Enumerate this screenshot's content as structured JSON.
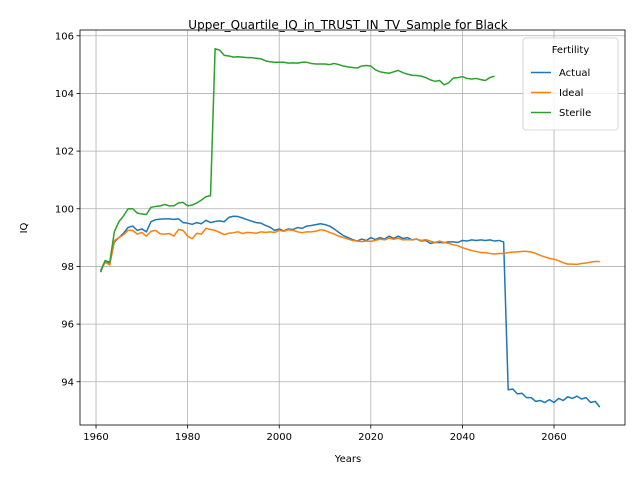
{
  "chart_data": {
    "type": "line",
    "title": "Upper_Quartile_IQ_in_TRUST_IN_TV_Sample for Black",
    "xlabel": "Years",
    "ylabel": "IQ",
    "xlim": [
      1956.5,
      2075.5
    ],
    "ylim": [
      92.5,
      106.2
    ],
    "xticks": [
      1960,
      1980,
      2000,
      2020,
      2040,
      2060
    ],
    "yticks": [
      94,
      96,
      98,
      100,
      102,
      104,
      106
    ],
    "grid": true,
    "legend": {
      "title": "Fertility",
      "position": "top-right"
    },
    "series": [
      {
        "name": "Actual",
        "color": "#1f77b4",
        "points": [
          [
            1961,
            97.8
          ],
          [
            1962,
            98.2
          ],
          [
            1963,
            98.1
          ],
          [
            1964,
            98.85
          ],
          [
            1965,
            99.0
          ],
          [
            1966,
            99.15
          ],
          [
            1967,
            99.35
          ],
          [
            1968,
            99.4
          ],
          [
            1969,
            99.25
          ],
          [
            1970,
            99.3
          ],
          [
            1971,
            99.2
          ],
          [
            1972,
            99.55
          ],
          [
            1973,
            99.62
          ],
          [
            1974,
            99.64
          ],
          [
            1975,
            99.65
          ],
          [
            1976,
            99.65
          ],
          [
            1977,
            99.63
          ],
          [
            1978,
            99.65
          ],
          [
            1979,
            99.52
          ],
          [
            1980,
            99.5
          ],
          [
            1981,
            99.46
          ],
          [
            1982,
            99.52
          ],
          [
            1983,
            99.48
          ],
          [
            1984,
            99.6
          ],
          [
            1985,
            99.52
          ],
          [
            1986,
            99.56
          ],
          [
            1987,
            99.58
          ],
          [
            1988,
            99.55
          ],
          [
            1989,
            99.7
          ],
          [
            1990,
            99.74
          ],
          [
            1991,
            99.73
          ],
          [
            1992,
            99.68
          ],
          [
            1993,
            99.62
          ],
          [
            1994,
            99.57
          ],
          [
            1995,
            99.52
          ],
          [
            1996,
            99.5
          ],
          [
            1997,
            99.42
          ],
          [
            1998,
            99.36
          ],
          [
            1999,
            99.25
          ],
          [
            2000,
            99.3
          ],
          [
            2001,
            99.23
          ],
          [
            2002,
            99.3
          ],
          [
            2003,
            99.28
          ],
          [
            2004,
            99.35
          ],
          [
            2005,
            99.32
          ],
          [
            2006,
            99.4
          ],
          [
            2007,
            99.42
          ],
          [
            2008,
            99.45
          ],
          [
            2009,
            99.48
          ],
          [
            2010,
            99.45
          ],
          [
            2011,
            99.4
          ],
          [
            2012,
            99.3
          ],
          [
            2013,
            99.18
          ],
          [
            2014,
            99.07
          ],
          [
            2015,
            99.0
          ],
          [
            2016,
            98.93
          ],
          [
            2017,
            98.88
          ],
          [
            2018,
            98.95
          ],
          [
            2019,
            98.9
          ],
          [
            2020,
            99.0
          ],
          [
            2021,
            98.93
          ],
          [
            2022,
            99.0
          ],
          [
            2023,
            98.95
          ],
          [
            2024,
            99.05
          ],
          [
            2025,
            98.97
          ],
          [
            2026,
            99.05
          ],
          [
            2027,
            98.97
          ],
          [
            2028,
            99.0
          ],
          [
            2029,
            98.92
          ],
          [
            2030,
            98.95
          ],
          [
            2031,
            98.88
          ],
          [
            2032,
            98.9
          ],
          [
            2033,
            98.8
          ],
          [
            2034,
            98.83
          ],
          [
            2035,
            98.83
          ],
          [
            2036,
            98.82
          ],
          [
            2037,
            98.85
          ],
          [
            2038,
            98.85
          ],
          [
            2039,
            98.83
          ],
          [
            2040,
            98.9
          ],
          [
            2041,
            98.88
          ],
          [
            2042,
            98.92
          ],
          [
            2043,
            98.9
          ],
          [
            2044,
            98.92
          ],
          [
            2045,
            98.9
          ],
          [
            2046,
            98.92
          ],
          [
            2047,
            98.88
          ],
          [
            2048,
            98.9
          ],
          [
            2049,
            98.85
          ],
          [
            2050,
            93.72
          ],
          [
            2051,
            93.75
          ],
          [
            2052,
            93.58
          ],
          [
            2053,
            93.6
          ],
          [
            2054,
            93.45
          ],
          [
            2055,
            93.45
          ],
          [
            2056,
            93.32
          ],
          [
            2057,
            93.35
          ],
          [
            2058,
            93.28
          ],
          [
            2059,
            93.38
          ],
          [
            2060,
            93.28
          ],
          [
            2061,
            93.42
          ],
          [
            2062,
            93.35
          ],
          [
            2063,
            93.48
          ],
          [
            2064,
            93.42
          ],
          [
            2065,
            93.5
          ],
          [
            2066,
            93.4
          ],
          [
            2067,
            93.45
          ],
          [
            2068,
            93.28
          ],
          [
            2069,
            93.32
          ],
          [
            2070,
            93.12
          ]
        ]
      },
      {
        "name": "Ideal",
        "color": "#ff7f0e",
        "points": [
          [
            1961,
            97.85
          ],
          [
            1962,
            98.15
          ],
          [
            1963,
            98.05
          ],
          [
            1964,
            98.9
          ],
          [
            1965,
            99.0
          ],
          [
            1966,
            99.1
          ],
          [
            1967,
            99.25
          ],
          [
            1968,
            99.25
          ],
          [
            1969,
            99.12
          ],
          [
            1970,
            99.18
          ],
          [
            1971,
            99.05
          ],
          [
            1972,
            99.22
          ],
          [
            1973,
            99.25
          ],
          [
            1974,
            99.13
          ],
          [
            1975,
            99.12
          ],
          [
            1976,
            99.14
          ],
          [
            1977,
            99.05
          ],
          [
            1978,
            99.28
          ],
          [
            1979,
            99.25
          ],
          [
            1980,
            99.05
          ],
          [
            1981,
            98.96
          ],
          [
            1982,
            99.15
          ],
          [
            1983,
            99.12
          ],
          [
            1984,
            99.32
          ],
          [
            1985,
            99.28
          ],
          [
            1986,
            99.25
          ],
          [
            1987,
            99.18
          ],
          [
            1988,
            99.1
          ],
          [
            1989,
            99.15
          ],
          [
            1990,
            99.17
          ],
          [
            1991,
            99.2
          ],
          [
            1992,
            99.14
          ],
          [
            1993,
            99.18
          ],
          [
            1994,
            99.17
          ],
          [
            1995,
            99.15
          ],
          [
            1996,
            99.2
          ],
          [
            1997,
            99.18
          ],
          [
            1998,
            99.2
          ],
          [
            1999,
            99.18
          ],
          [
            2000,
            99.25
          ],
          [
            2001,
            99.22
          ],
          [
            2002,
            99.27
          ],
          [
            2003,
            99.25
          ],
          [
            2004,
            99.2
          ],
          [
            2005,
            99.17
          ],
          [
            2006,
            99.2
          ],
          [
            2007,
            99.2
          ],
          [
            2008,
            99.22
          ],
          [
            2009,
            99.27
          ],
          [
            2010,
            99.25
          ],
          [
            2011,
            99.18
          ],
          [
            2012,
            99.12
          ],
          [
            2013,
            99.05
          ],
          [
            2014,
            99.0
          ],
          [
            2015,
            98.95
          ],
          [
            2016,
            98.9
          ],
          [
            2017,
            98.88
          ],
          [
            2018,
            98.86
          ],
          [
            2019,
            98.88
          ],
          [
            2020,
            98.87
          ],
          [
            2021,
            98.9
          ],
          [
            2022,
            98.95
          ],
          [
            2023,
            98.92
          ],
          [
            2024,
            98.98
          ],
          [
            2025,
            98.94
          ],
          [
            2026,
            98.98
          ],
          [
            2027,
            98.92
          ],
          [
            2028,
            98.93
          ],
          [
            2029,
            98.92
          ],
          [
            2030,
            98.95
          ],
          [
            2031,
            98.9
          ],
          [
            2032,
            98.93
          ],
          [
            2033,
            98.88
          ],
          [
            2034,
            98.83
          ],
          [
            2035,
            98.88
          ],
          [
            2036,
            98.83
          ],
          [
            2037,
            98.8
          ],
          [
            2038,
            98.75
          ],
          [
            2039,
            98.72
          ],
          [
            2040,
            98.65
          ],
          [
            2041,
            98.6
          ],
          [
            2042,
            98.55
          ],
          [
            2043,
            98.52
          ],
          [
            2044,
            98.48
          ],
          [
            2045,
            98.48
          ],
          [
            2046,
            98.45
          ],
          [
            2047,
            98.43
          ],
          [
            2048,
            98.45
          ],
          [
            2049,
            98.45
          ],
          [
            2050,
            98.48
          ],
          [
            2051,
            98.5
          ],
          [
            2052,
            98.5
          ],
          [
            2053,
            98.52
          ],
          [
            2054,
            98.52
          ],
          [
            2055,
            98.5
          ],
          [
            2056,
            98.45
          ],
          [
            2057,
            98.38
          ],
          [
            2058,
            98.33
          ],
          [
            2059,
            98.28
          ],
          [
            2060,
            98.25
          ],
          [
            2061,
            98.2
          ],
          [
            2062,
            98.13
          ],
          [
            2063,
            98.08
          ],
          [
            2064,
            98.08
          ],
          [
            2065,
            98.07
          ],
          [
            2066,
            98.1
          ],
          [
            2067,
            98.12
          ],
          [
            2068,
            98.15
          ],
          [
            2069,
            98.17
          ],
          [
            2070,
            98.17
          ]
        ]
      },
      {
        "name": "Sterile",
        "color": "#2ca02c",
        "points": [
          [
            1961,
            97.85
          ],
          [
            1962,
            98.2
          ],
          [
            1963,
            98.15
          ],
          [
            1964,
            99.2
          ],
          [
            1965,
            99.55
          ],
          [
            1966,
            99.75
          ],
          [
            1967,
            100.0
          ],
          [
            1968,
            100.0
          ],
          [
            1969,
            99.85
          ],
          [
            1970,
            99.82
          ],
          [
            1971,
            99.8
          ],
          [
            1972,
            100.05
          ],
          [
            1973,
            100.08
          ],
          [
            1974,
            100.1
          ],
          [
            1975,
            100.15
          ],
          [
            1976,
            100.1
          ],
          [
            1977,
            100.1
          ],
          [
            1978,
            100.2
          ],
          [
            1979,
            100.22
          ],
          [
            1980,
            100.1
          ],
          [
            1981,
            100.13
          ],
          [
            1982,
            100.2
          ],
          [
            1983,
            100.3
          ],
          [
            1984,
            100.42
          ],
          [
            1985,
            100.45
          ],
          [
            1986,
            105.55
          ],
          [
            1987,
            105.5
          ],
          [
            1988,
            105.32
          ],
          [
            1989,
            105.3
          ],
          [
            1990,
            105.26
          ],
          [
            1991,
            105.27
          ],
          [
            1992,
            105.26
          ],
          [
            1993,
            105.24
          ],
          [
            1994,
            105.24
          ],
          [
            1995,
            105.22
          ],
          [
            1996,
            105.2
          ],
          [
            1997,
            105.13
          ],
          [
            1998,
            105.1
          ],
          [
            1999,
            105.08
          ],
          [
            2000,
            105.08
          ],
          [
            2001,
            105.08
          ],
          [
            2002,
            105.05
          ],
          [
            2003,
            105.06
          ],
          [
            2004,
            105.05
          ],
          [
            2005,
            105.08
          ],
          [
            2006,
            105.08
          ],
          [
            2007,
            105.04
          ],
          [
            2008,
            105.02
          ],
          [
            2009,
            105.02
          ],
          [
            2010,
            105.02
          ],
          [
            2011,
            105.0
          ],
          [
            2012,
            105.04
          ],
          [
            2013,
            105.0
          ],
          [
            2014,
            104.95
          ],
          [
            2015,
            104.92
          ],
          [
            2016,
            104.9
          ],
          [
            2017,
            104.88
          ],
          [
            2018,
            104.95
          ],
          [
            2019,
            104.97
          ],
          [
            2020,
            104.95
          ],
          [
            2021,
            104.82
          ],
          [
            2022,
            104.75
          ],
          [
            2023,
            104.72
          ],
          [
            2024,
            104.7
          ],
          [
            2025,
            104.75
          ],
          [
            2026,
            104.8
          ],
          [
            2027,
            104.72
          ],
          [
            2028,
            104.67
          ],
          [
            2029,
            104.63
          ],
          [
            2030,
            104.62
          ],
          [
            2031,
            104.6
          ],
          [
            2032,
            104.55
          ],
          [
            2033,
            104.47
          ],
          [
            2034,
            104.42
          ],
          [
            2035,
            104.45
          ],
          [
            2036,
            104.3
          ],
          [
            2037,
            104.37
          ],
          [
            2038,
            104.53
          ],
          [
            2039,
            104.55
          ],
          [
            2040,
            104.58
          ],
          [
            2041,
            104.52
          ],
          [
            2042,
            104.5
          ],
          [
            2043,
            104.52
          ],
          [
            2044,
            104.48
          ],
          [
            2045,
            104.45
          ],
          [
            2046,
            104.55
          ],
          [
            2047,
            104.6
          ]
        ]
      }
    ]
  }
}
